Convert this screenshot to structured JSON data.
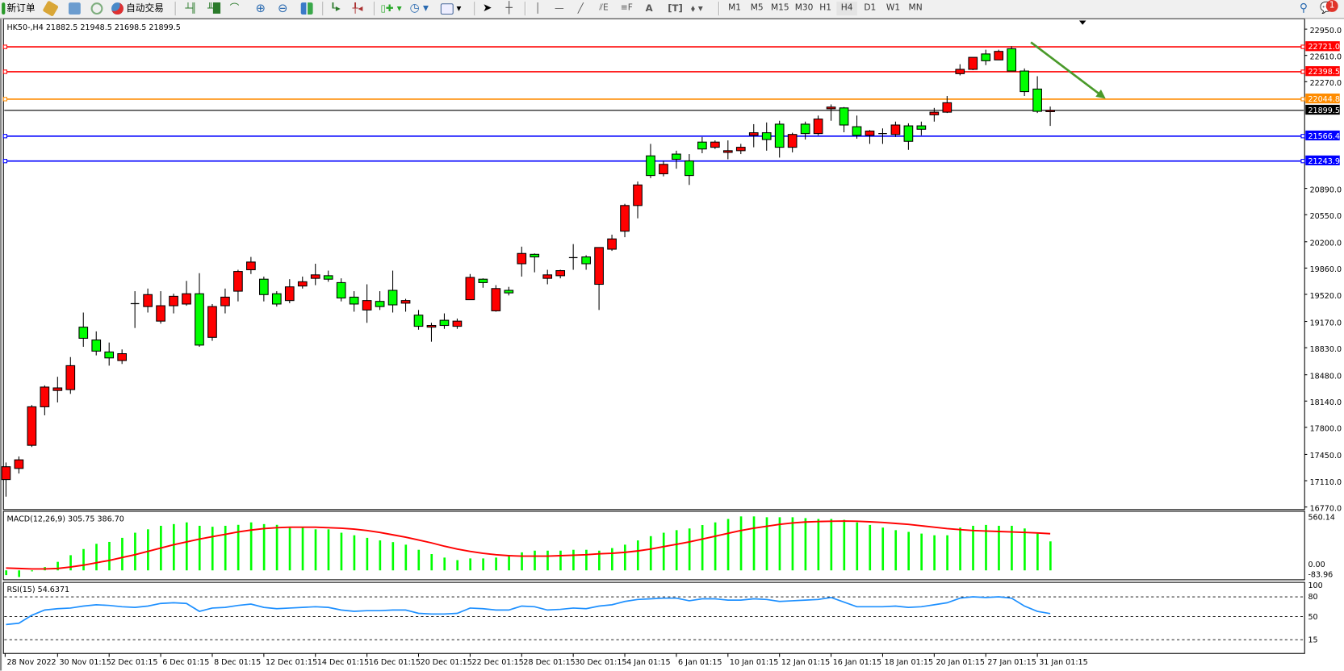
{
  "toolbar": {
    "new_order": "新订单",
    "auto_trading": "自动交易",
    "timeframes": [
      "M1",
      "M5",
      "M15",
      "M30",
      "H1",
      "H4",
      "D1",
      "W1",
      "MN"
    ],
    "active_timeframe": "H4",
    "tools_icons": [
      "bar-chart-icon",
      "candlestick-icon",
      "line-chart-icon",
      "zoom-in-icon",
      "zoom-out-icon",
      "tile-windows-icon",
      "auto-scroll-icon",
      "chart-shift-icon",
      "new-chart-icon",
      "periodicity-icon",
      "templates-icon",
      "cursor-icon",
      "crosshair-icon",
      "vertical-line-icon",
      "horizontal-line-icon",
      "trendline-icon",
      "equidistant-channel-icon",
      "fibonacci-icon",
      "text-icon",
      "text-label-icon",
      "arrows-icon"
    ],
    "notification_count": "1"
  },
  "chart_header": "HK50-,H4  21882.5 21948.5 21698.5 21899.5",
  "colors": {
    "bull": "#ff0000",
    "bear": "#00ff00",
    "resistance": "#ff0000",
    "pivot": "#ff8c00",
    "support": "#0000ff",
    "macd_hist": "#00ff00",
    "macd_signal": "#ff0000",
    "rsi": "#1e90ff",
    "arrow": "#4a9a2a"
  },
  "chart_data": [
    {
      "type": "candlestick",
      "symbol": "HK50-",
      "timeframe": "H4",
      "ylim": [
        16770,
        22950
      ],
      "y_ticks": [
        22950,
        22610,
        22270,
        20890,
        20550,
        20200,
        19860,
        19520,
        19170,
        18830,
        18480,
        18140,
        17800,
        17450,
        17110,
        16770
      ],
      "y_tick_labels": [
        "22950.0",
        "22610.0",
        "22270.0",
        "20890.0",
        "20550.0",
        "20200.0",
        "19860.0",
        "19520.0",
        "19170.0",
        "18830.0",
        "18480.0",
        "18140.0",
        "17800.0",
        "17450.0",
        "17110.0",
        "16770.0"
      ],
      "x_labels": [
        {
          "bar": 0,
          "text": "28 Nov 2022"
        },
        {
          "bar": 4,
          "text": "30 Nov 01:15"
        },
        {
          "bar": 8,
          "text": "2 Dec 01:15"
        },
        {
          "bar": 12,
          "text": "6 Dec 01:15"
        },
        {
          "bar": 16,
          "text": "8 Dec 01:15"
        },
        {
          "bar": 20,
          "text": "12 Dec 01:15"
        },
        {
          "bar": 24,
          "text": "14 Dec 01:15"
        },
        {
          "bar": 28,
          "text": "16 Dec 01:15"
        },
        {
          "bar": 32,
          "text": "20 Dec 01:15"
        },
        {
          "bar": 36,
          "text": "22 Dec 01:15"
        },
        {
          "bar": 40,
          "text": "28 Dec 01:15"
        },
        {
          "bar": 44,
          "text": "30 Dec 01:15"
        },
        {
          "bar": 48,
          "text": "4 Jan 01:15"
        },
        {
          "bar": 52,
          "text": "6 Jan 01:15"
        },
        {
          "bar": 56,
          "text": "10 Jan 01:15"
        },
        {
          "bar": 60,
          "text": "12 Jan 01:15"
        },
        {
          "bar": 64,
          "text": "16 Jan 01:15"
        },
        {
          "bar": 68,
          "text": "18 Jan 01:15"
        },
        {
          "bar": 72,
          "text": "20 Jan 01:15"
        },
        {
          "bar": 76,
          "text": "27 Jan 01:15"
        },
        {
          "bar": 80,
          "text": "31 Jan 01:15"
        }
      ],
      "ohlc": [
        [
          17125,
          17346,
          16904,
          17291
        ],
        [
          17269,
          17424,
          17203,
          17380
        ],
        [
          17568,
          18089,
          17546,
          18066
        ],
        [
          18066,
          18343,
          17956,
          18321
        ],
        [
          18277,
          18454,
          18122,
          18310
        ],
        [
          18288,
          18709,
          18233,
          18598
        ],
        [
          19096,
          19285,
          18842,
          18952
        ],
        [
          18930,
          19041,
          18731,
          18786
        ],
        [
          18775,
          18897,
          18598,
          18698
        ],
        [
          18664,
          18808,
          18620,
          18753
        ],
        [
          19395,
          19561,
          19085,
          19400
        ],
        [
          19362,
          19595,
          19285,
          19517
        ],
        [
          19174,
          19561,
          19141,
          19373
        ],
        [
          19373,
          19528,
          19274,
          19495
        ],
        [
          19395,
          19694,
          19373,
          19528
        ],
        [
          19528,
          19794,
          18842,
          18864
        ],
        [
          18964,
          19395,
          18919,
          19362
        ],
        [
          19373,
          19595,
          19274,
          19484
        ],
        [
          19561,
          19838,
          19429,
          19816
        ],
        [
          19838,
          20004,
          19783,
          19938
        ],
        [
          19716,
          19750,
          19429,
          19517
        ],
        [
          19528,
          19561,
          19362,
          19395
        ],
        [
          19440,
          19716,
          19406,
          19617
        ],
        [
          19628,
          19750,
          19595,
          19683
        ],
        [
          19727,
          19916,
          19639,
          19772
        ],
        [
          19761,
          19827,
          19683,
          19716
        ],
        [
          19672,
          19727,
          19429,
          19473
        ],
        [
          19484,
          19561,
          19296,
          19395
        ],
        [
          19318,
          19650,
          19152,
          19440
        ],
        [
          19429,
          19561,
          19318,
          19362
        ],
        [
          19572,
          19827,
          19285,
          19384
        ],
        [
          19406,
          19462,
          19296,
          19440
        ],
        [
          19251,
          19318,
          19063,
          19107
        ],
        [
          19096,
          19152,
          18908,
          19118
        ],
        [
          19185,
          19274,
          19074,
          19118
        ],
        [
          19107,
          19207,
          19074,
          19174
        ],
        [
          19451,
          19783,
          19451,
          19739
        ],
        [
          19716,
          19727,
          19606,
          19672
        ],
        [
          19307,
          19639,
          19296,
          19595
        ],
        [
          19572,
          19617,
          19506,
          19539
        ],
        [
          19916,
          20137,
          19750,
          20049
        ],
        [
          20038,
          20049,
          19805,
          20004
        ],
        [
          19727,
          19838,
          19650,
          19772
        ],
        [
          19761,
          19838,
          19727,
          19827
        ],
        [
          19993,
          20170,
          19838,
          19995
        ],
        [
          20004,
          20026,
          19838,
          19916
        ],
        [
          19650,
          20126,
          19318,
          20126
        ],
        [
          20104,
          20292,
          20082,
          20237
        ],
        [
          20337,
          20691,
          20259,
          20669
        ],
        [
          20669,
          20979,
          20503,
          20935
        ],
        [
          21311,
          21466,
          21023,
          21057
        ],
        [
          21079,
          21245,
          21046,
          21201
        ],
        [
          21334,
          21378,
          21145,
          21267
        ],
        [
          21245,
          21334,
          20935,
          21057
        ],
        [
          21489,
          21555,
          21345,
          21400
        ],
        [
          21422,
          21511,
          21400,
          21489
        ],
        [
          21356,
          21511,
          21267,
          21378
        ],
        [
          21378,
          21466,
          21334,
          21422
        ],
        [
          21577,
          21721,
          21422,
          21610
        ],
        [
          21610,
          21743,
          21378,
          21522
        ],
        [
          21721,
          21765,
          21289,
          21422
        ],
        [
          21422,
          21610,
          21356,
          21588
        ],
        [
          21721,
          21754,
          21522,
          21599
        ],
        [
          21599,
          21832,
          21577,
          21787
        ],
        [
          21920,
          21976,
          21765,
          21942
        ],
        [
          21931,
          21942,
          21616,
          21710
        ],
        [
          21688,
          21832,
          21533,
          21577
        ],
        [
          21577,
          21644,
          21466,
          21632
        ],
        [
          21599,
          21666,
          21466,
          21588
        ],
        [
          21588,
          21754,
          21555,
          21710
        ],
        [
          21699,
          21732,
          21389,
          21499
        ],
        [
          21699,
          21754,
          21577,
          21655
        ],
        [
          21842,
          21931,
          21754,
          21876
        ],
        [
          21876,
          22086,
          21865,
          21998
        ],
        [
          22374,
          22496,
          22352,
          22430
        ],
        [
          22430,
          22585,
          22419,
          22585
        ],
        [
          22629,
          22684,
          22485,
          22541
        ],
        [
          22552,
          22684,
          22552,
          22662
        ],
        [
          22696,
          22729,
          22408,
          22408
        ],
        [
          22408,
          22441,
          22086,
          22142
        ],
        [
          22175,
          22341,
          21865,
          21887
        ],
        [
          21882.5,
          21948.5,
          21698.5,
          21899.5
        ]
      ],
      "horizontal_lines": [
        {
          "price": 22721.0,
          "label": "22721.0",
          "color": "#ff0000"
        },
        {
          "price": 22398.5,
          "label": "22398.5",
          "color": "#ff0000"
        },
        {
          "price": 22044.8,
          "label": "22044.8",
          "color": "#ff8c00"
        },
        {
          "price": 21566.4,
          "label": "21566.4",
          "color": "#0000ff"
        },
        {
          "price": 21243.9,
          "label": "21243.9",
          "color": "#0000ff"
        }
      ],
      "current_price": {
        "price": 21899.5,
        "label": "21899.5"
      },
      "arrow": {
        "from": {
          "bar": 79.5,
          "price": 22780
        },
        "to": {
          "bar": 85.3,
          "price": 22050
        },
        "color": "#4a9a2a"
      }
    },
    {
      "type": "bar+line",
      "title": "MACD(12,26,9) 305.75 386.70",
      "y_tick_labels": [
        "560.14",
        "0.00",
        "-83.96"
      ],
      "ylim": [
        -83.96,
        560.14
      ],
      "histogram": [
        -50,
        -70,
        -10,
        35,
        90,
        160,
        225,
        280,
        300,
        343,
        397,
        433,
        470,
        488,
        506,
        470,
        460,
        470,
        480,
        506,
        488,
        480,
        450,
        450,
        433,
        433,
        397,
        370,
        343,
        316,
        298,
        271,
        217,
        172,
        135,
        108,
        126,
        126,
        135,
        163,
        190,
        208,
        208,
        208,
        217,
        217,
        208,
        235,
        271,
        316,
        361,
        397,
        424,
        442,
        478,
        506,
        542,
        569,
        569,
        560,
        560,
        560,
        551,
        542,
        542,
        533,
        506,
        479,
        451,
        424,
        406,
        388,
        370,
        370,
        451,
        470,
        479,
        470,
        470,
        442,
        388,
        305.75
      ],
      "signal": [
        25,
        20,
        15,
        15,
        20,
        35,
        55,
        80,
        105,
        135,
        165,
        200,
        235,
        270,
        300,
        330,
        355,
        380,
        405,
        425,
        440,
        450,
        455,
        455,
        455,
        450,
        445,
        435,
        420,
        400,
        375,
        350,
        320,
        290,
        255,
        225,
        200,
        180,
        165,
        155,
        150,
        150,
        150,
        155,
        160,
        165,
        175,
        180,
        190,
        205,
        225,
        250,
        275,
        300,
        330,
        360,
        390,
        420,
        445,
        465,
        485,
        500,
        510,
        515,
        518,
        520,
        518,
        512,
        505,
        495,
        485,
        470,
        455,
        440,
        430,
        420,
        415,
        410,
        405,
        400,
        395,
        386.7
      ]
    },
    {
      "type": "line",
      "title": "RSI(15) 54.6371",
      "ylim": [
        0,
        100
      ],
      "levels": [
        80,
        50,
        15
      ],
      "y_tick_labels": [
        "100",
        "80",
        "50",
        "15"
      ],
      "values": [
        38,
        40,
        52,
        60,
        62,
        63,
        66,
        68,
        67,
        65,
        64,
        66,
        70,
        71,
        70,
        58,
        63,
        64,
        67,
        69,
        64,
        62,
        63,
        64,
        65,
        64,
        60,
        58,
        59,
        59,
        60,
        60,
        55,
        54,
        54,
        55,
        63,
        62,
        60,
        60,
        66,
        65,
        60,
        61,
        63,
        62,
        66,
        68,
        73,
        76,
        77,
        78,
        78,
        74,
        77,
        77,
        75,
        75,
        77,
        76,
        73,
        74,
        75,
        76,
        79,
        72,
        65,
        65,
        65,
        66,
        64,
        65,
        68,
        71,
        78,
        80,
        79,
        80,
        78,
        66,
        58,
        54.6371
      ]
    }
  ]
}
